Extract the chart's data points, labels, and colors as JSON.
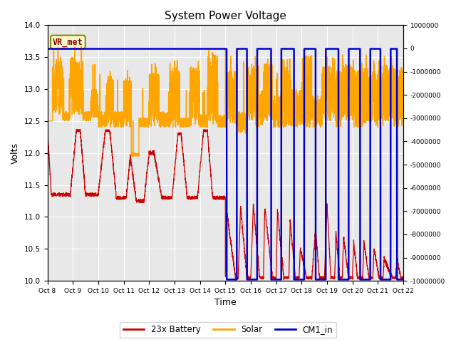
{
  "title": "System Power Voltage",
  "xlabel": "Time",
  "ylabel": "Volts",
  "ylim_left": [
    10.0,
    14.0
  ],
  "ylim_right": [
    -10000000,
    1000000
  ],
  "bg_color": "#e8e8e8",
  "annotation_text": "VR_met",
  "annotation_color": "#8b0000",
  "annotation_bg": "#ffffcc",
  "line_colors": {
    "battery": "#cc0000",
    "solar": "#ffa500",
    "cm1": "#0000cc"
  },
  "legend_labels": [
    "23x Battery",
    "Solar",
    "CM1_in"
  ],
  "x_tick_labels": [
    "Oct 8",
    "Oct 9",
    "Oct 10",
    "Oct 11",
    "Oct 12",
    "Oct 13",
    "Oct 14",
    "Oct 15",
    "Oct 16",
    "Oct 17",
    "Oct 18",
    "Oct 19",
    "Oct 20",
    "Oct 21",
    "Oct 22"
  ],
  "cm1_flat_value": 13.63,
  "cm1_drop_value": 10.02,
  "yticks_left": [
    10.0,
    10.5,
    11.0,
    11.5,
    12.0,
    12.5,
    13.0,
    13.5,
    14.0
  ],
  "yticks_right": [
    1000000,
    0,
    -1000000,
    -2000000,
    -3000000,
    -4000000,
    -5000000,
    -6000000,
    -7000000,
    -8000000,
    -9000000,
    -10000000
  ]
}
